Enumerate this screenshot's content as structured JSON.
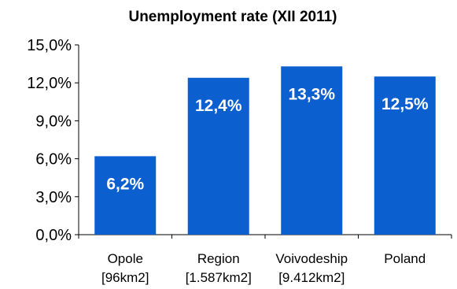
{
  "chart_data": {
    "type": "bar",
    "title": "Unemployment rate (XII 2011)",
    "categories": [
      [
        "Opole",
        "[96km2]"
      ],
      [
        "Region",
        "[1.587km2]"
      ],
      [
        "Voivodeship",
        "[9.412km2]"
      ],
      [
        "Poland",
        ""
      ]
    ],
    "values": [
      6.2,
      12.4,
      13.3,
      12.5
    ],
    "data_labels": [
      "6,2%",
      "12,4%",
      "13,3%",
      "12,5%"
    ],
    "ylim": [
      0,
      15
    ],
    "yticks": [
      0,
      3,
      6,
      9,
      12,
      15
    ],
    "ytick_labels": [
      "0,0%",
      "3,0%",
      "6,0%",
      "9,0%",
      "12,0%",
      "15,0%"
    ],
    "xlabel": "",
    "ylabel": "",
    "grid": false,
    "legend": "none",
    "bar_color": "#0B5FCF"
  }
}
